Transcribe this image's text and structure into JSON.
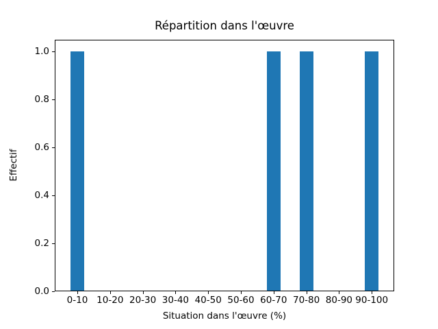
{
  "chart_data": {
    "type": "bar",
    "title": "Répartition dans l'œuvre",
    "xlabel": "Situation dans l'œuvre (%)",
    "ylabel": "Effectif",
    "categories": [
      "0-10",
      "10-20",
      "20-30",
      "30-40",
      "40-50",
      "50-60",
      "60-70",
      "70-80",
      "80-90",
      "90-100"
    ],
    "values": [
      1,
      0,
      0,
      0,
      0,
      0,
      1,
      1,
      0,
      1
    ],
    "yticks": [
      "0.0",
      "0.2",
      "0.4",
      "0.6",
      "0.8",
      "1.0"
    ],
    "ytick_values": [
      0.0,
      0.2,
      0.4,
      0.6,
      0.8,
      1.0
    ],
    "ylim": [
      0,
      1.05
    ],
    "bar_color": "#1f77b4",
    "axis_color": "#000000",
    "background_color": "#ffffff",
    "grid": false,
    "legend": "none"
  }
}
